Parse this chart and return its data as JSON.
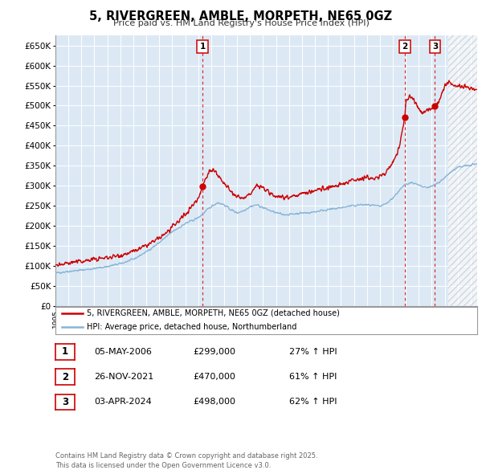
{
  "title": "5, RIVERGREEN, AMBLE, MORPETH, NE65 0GZ",
  "subtitle": "Price paid vs. HM Land Registry's House Price Index (HPI)",
  "bg_color": "#dce9f5",
  "grid_color": "#c8d8e8",
  "red_color": "#cc0000",
  "blue_color": "#88b4d8",
  "ylim": [
    0,
    675000
  ],
  "xmin": 1995.0,
  "xmax": 2027.5,
  "hatch_start": 2025.25,
  "sale_dates": [
    2006.34,
    2021.92,
    2024.25
  ],
  "sale_prices": [
    299000,
    470000,
    498000
  ],
  "sale_labels": [
    "1",
    "2",
    "3"
  ],
  "legend_red": "5, RIVERGREEN, AMBLE, MORPETH, NE65 0GZ (detached house)",
  "legend_blue": "HPI: Average price, detached house, Northumberland",
  "table": [
    [
      "1",
      "05-MAY-2006",
      "£299,000",
      "27% ↑ HPI"
    ],
    [
      "2",
      "26-NOV-2021",
      "£470,000",
      "61% ↑ HPI"
    ],
    [
      "3",
      "03-APR-2024",
      "£498,000",
      "62% ↑ HPI"
    ]
  ],
  "footnote": "Contains HM Land Registry data © Crown copyright and database right 2025.\nThis data is licensed under the Open Government Licence v3.0."
}
